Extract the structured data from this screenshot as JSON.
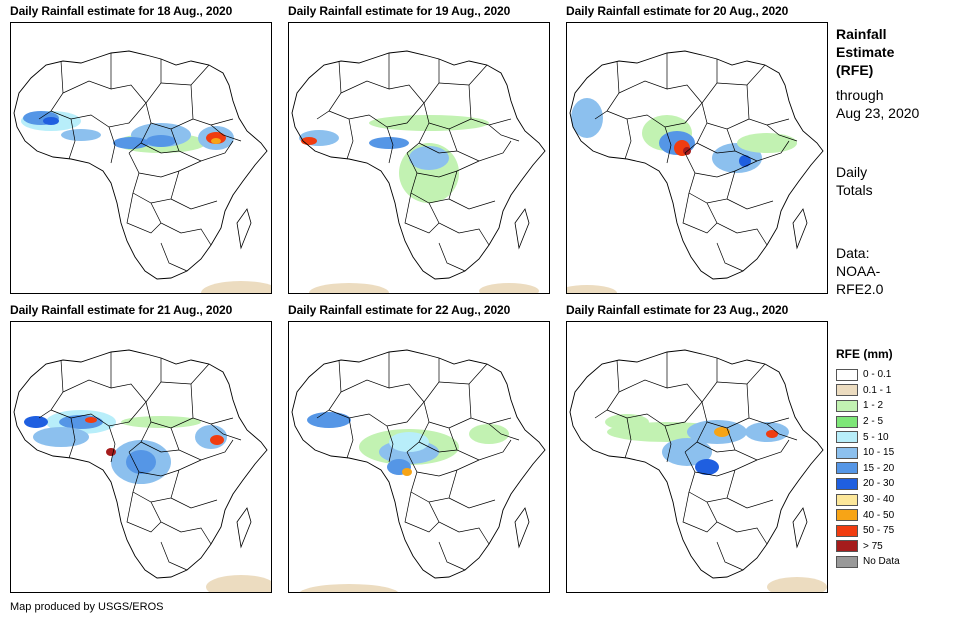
{
  "panels": [
    {
      "title": "Daily Rainfall estimate for 18 Aug., 2020"
    },
    {
      "title": "Daily Rainfall estimate for 19 Aug., 2020"
    },
    {
      "title": "Daily Rainfall estimate for 20 Aug., 2020"
    },
    {
      "title": "Daily Rainfall estimate for 21 Aug., 2020"
    },
    {
      "title": "Daily Rainfall estimate for 22 Aug., 2020"
    },
    {
      "title": "Daily Rainfall estimate for 23 Aug., 2020"
    }
  ],
  "sidebar": {
    "heading": [
      "Rainfall",
      "Estimate",
      "(RFE)"
    ],
    "through": [
      "through",
      "Aug 23, 2020"
    ],
    "totals": [
      "Daily",
      "Totals"
    ],
    "data": [
      "Data:",
      "NOAA-",
      "RFE2.0"
    ]
  },
  "legend": {
    "title": "RFE (mm)",
    "items": [
      {
        "label": "0 - 0.1",
        "color": "#ffffff"
      },
      {
        "label": "0.1 - 1",
        "color": "#ecdcc0"
      },
      {
        "label": "1 - 2",
        "color": "#c2f2b2"
      },
      {
        "label": "2 - 5",
        "color": "#7ee678"
      },
      {
        "label": "5 - 10",
        "color": "#b8eefa"
      },
      {
        "label": "10 - 15",
        "color": "#8cc0ee"
      },
      {
        "label": "15 - 20",
        "color": "#5596e6"
      },
      {
        "label": "20 - 30",
        "color": "#1f5fe0"
      },
      {
        "label": "30 - 40",
        "color": "#fce79a"
      },
      {
        "label": "40 - 50",
        "color": "#f7a416"
      },
      {
        "label": "50 - 75",
        "color": "#f03c10"
      },
      {
        "label": "> 75",
        "color": "#a51c1c"
      },
      {
        "label": "No Data",
        "color": "#999999"
      }
    ]
  },
  "credit": "Map produced by USGS/EROS"
}
